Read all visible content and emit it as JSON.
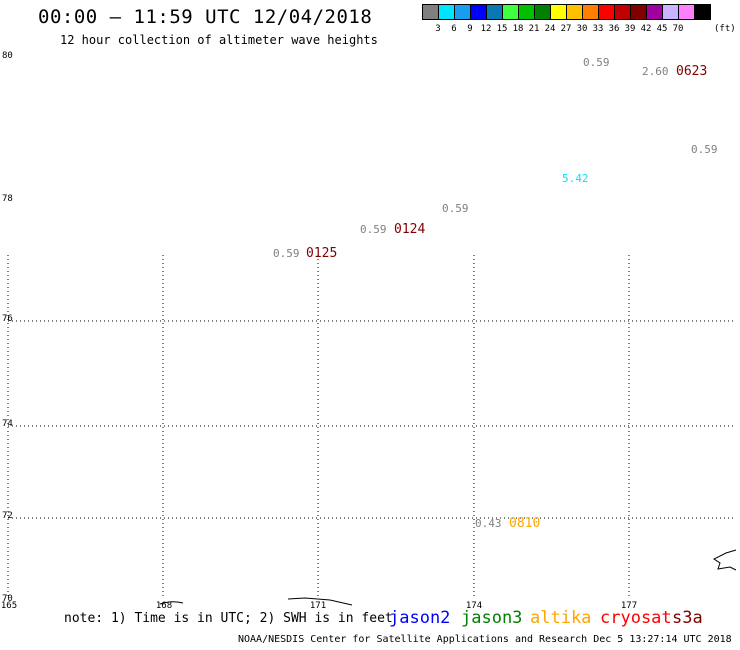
{
  "header": {
    "title": "00:00 – 11:59 UTC 12/04/2018",
    "subtitle": "12 hour collection of altimeter wave heights"
  },
  "scale": {
    "colors": [
      "#808080",
      "#00e5ff",
      "#1a9cf0",
      "#0000ff",
      "#0a78b4",
      "#40ff40",
      "#00bf00",
      "#008000",
      "#ffff00",
      "#ffc000",
      "#ff8000",
      "#ff0000",
      "#c00000",
      "#800000",
      "#a000a0",
      "#c8b4ff",
      "#ff80ff",
      "#000000"
    ],
    "labels": [
      "3",
      "6",
      "9",
      "12",
      "15",
      "18",
      "21",
      "24",
      "27",
      "30",
      "33",
      "36",
      "39",
      "42",
      "45",
      "70"
    ],
    "unit": "(ft)"
  },
  "axes": {
    "y_ticks": [
      "80",
      "78",
      "76",
      "74",
      "72",
      "70"
    ],
    "x_ticks": [
      "165",
      "168",
      "171",
      "174",
      "177"
    ]
  },
  "observations": [
    {
      "value": "0.59",
      "color": "#808080"
    },
    {
      "value": "2.60",
      "color": "#808080"
    },
    {
      "value": "0.59",
      "color": "#808080"
    },
    {
      "value": "5.42",
      "color": "#00e5ff"
    },
    {
      "value": "0.59",
      "color": "#808080"
    },
    {
      "value": "0.59",
      "color": "#808080"
    },
    {
      "value": "0.59",
      "color": "#808080"
    },
    {
      "value": "0.43",
      "color": "#808080"
    }
  ],
  "pass_times": [
    {
      "time": "0623",
      "color": "#800000"
    },
    {
      "time": "0124",
      "color": "#800000"
    },
    {
      "time": "0125",
      "color": "#800000"
    },
    {
      "time": "0810",
      "color": "#ffa500"
    }
  ],
  "footer": {
    "note": "note: 1) Time is in UTC; 2) SWH is in feet",
    "satellites": [
      {
        "name": "jason2",
        "color": "#0000ff"
      },
      {
        "name": "jason3",
        "color": "#008000"
      },
      {
        "name": "altika",
        "color": "#ffa500"
      },
      {
        "name": "cryosat",
        "color": "#ff0000"
      },
      {
        "name": "s3a",
        "color": "#800000"
      }
    ],
    "credit": "NOAA/NESDIS Center for Satellite Applications and Research    Dec  5 13:27:14 UTC 2018"
  }
}
